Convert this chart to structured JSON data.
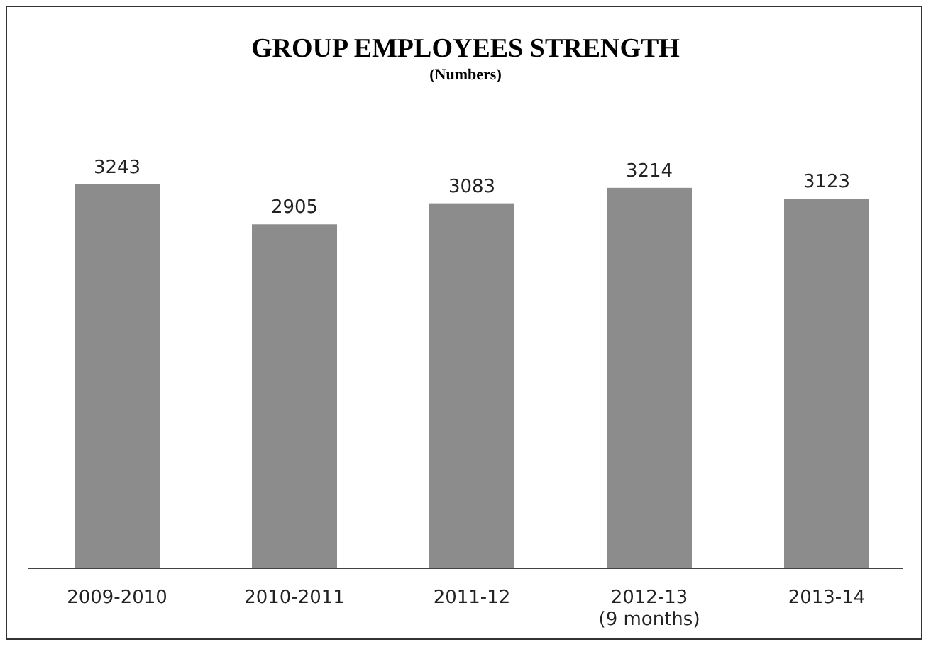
{
  "chart_data": {
    "type": "bar",
    "title": "GROUP EMPLOYEES STRENGTH",
    "subtitle": "(Numbers)",
    "categories": [
      "2009-2010",
      "2010-2011",
      "2011-12",
      "2012-13\n(9 months)",
      "2013-14"
    ],
    "values": [
      3243,
      2905,
      3083,
      3214,
      3123
    ],
    "color": "#8c8c8c",
    "tick_labels": "x",
    "data_labels": true
  }
}
